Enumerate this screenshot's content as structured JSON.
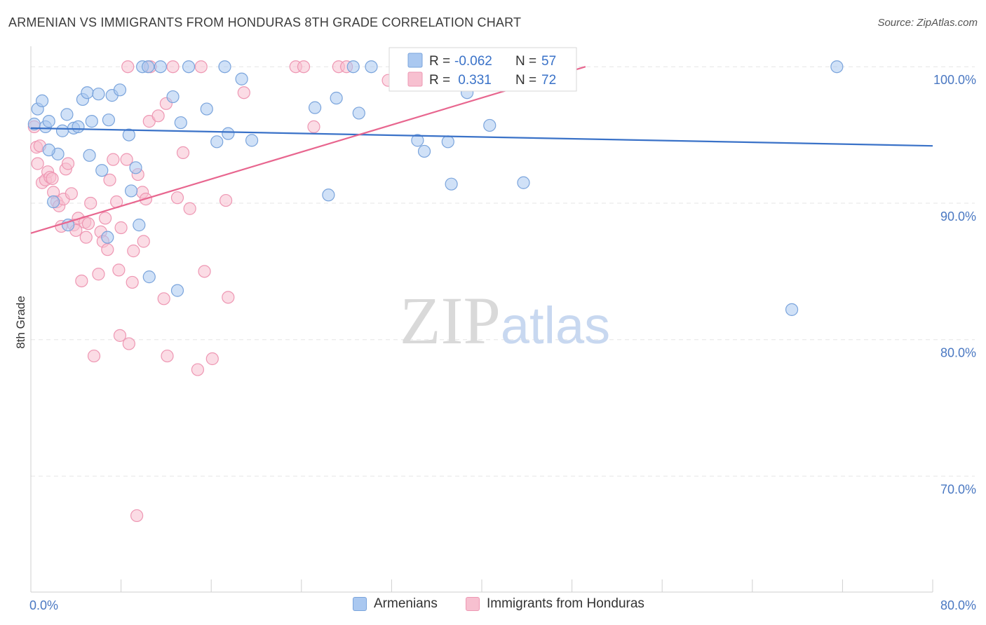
{
  "title": "ARMENIAN VS IMMIGRANTS FROM HONDURAS 8TH GRADE CORRELATION CHART",
  "source": "Source: ZipAtlas.com",
  "watermark": {
    "zip": "ZIP",
    "atlas": "atlas"
  },
  "legend_top": {
    "rows": [
      {
        "r_label": "R =",
        "r_value": "-0.062",
        "n_label": "N =",
        "n_value": "57"
      },
      {
        "r_label": "R =",
        "r_value": " 0.331",
        "n_label": "N =",
        "n_value": "72"
      }
    ]
  },
  "legend_bottom": {
    "series_a": "Armenians",
    "series_b": "Immigrants from Honduras"
  },
  "colors": {
    "blue_fill": "#aac8f0",
    "blue_stroke": "#7aa4dc",
    "blue_line": "#3a72c8",
    "pink_fill": "#f7c0d0",
    "pink_stroke": "#ee97b3",
    "pink_line": "#e8668f",
    "tick_label": "#4a78c2",
    "grid": "#e6e6e6"
  },
  "chart_data": {
    "type": "scatter",
    "title": "ARMENIAN VS IMMIGRANTS FROM HONDURAS 8TH GRADE CORRELATION CHART",
    "xlabel": "",
    "ylabel": "8th Grade",
    "xlim": [
      0,
      80
    ],
    "ylim": [
      61.5,
      101.5
    ],
    "x_tick_labels": [
      "0.0%",
      "80.0%"
    ],
    "y_ticks": [
      100,
      90,
      80,
      70
    ],
    "y_tick_labels": [
      "100.0%",
      "90.0%",
      "80.0%",
      "70.0%"
    ],
    "grid": true,
    "legend_position": "bottom",
    "series": [
      {
        "name": "Armenians",
        "color": "#aac8f0",
        "r": -0.062,
        "n": 57,
        "trend": {
          "x": [
            0,
            80
          ],
          "y": [
            95.5,
            94.2
          ]
        },
        "points": [
          {
            "x": 0.3,
            "y": 95.8
          },
          {
            "x": 0.6,
            "y": 96.9
          },
          {
            "x": 1.0,
            "y": 97.5
          },
          {
            "x": 1.3,
            "y": 95.6
          },
          {
            "x": 1.6,
            "y": 96.0
          },
          {
            "x": 2.0,
            "y": 90.1
          },
          {
            "x": 2.4,
            "y": 93.6
          },
          {
            "x": 2.8,
            "y": 95.3
          },
          {
            "x": 3.2,
            "y": 96.5
          },
          {
            "x": 3.8,
            "y": 95.5
          },
          {
            "x": 4.2,
            "y": 95.6
          },
          {
            "x": 4.6,
            "y": 97.6
          },
          {
            "x": 5.0,
            "y": 98.1
          },
          {
            "x": 5.4,
            "y": 96.0
          },
          {
            "x": 5.2,
            "y": 93.5
          },
          {
            "x": 6.0,
            "y": 98.0
          },
          {
            "x": 6.3,
            "y": 92.4
          },
          {
            "x": 6.8,
            "y": 87.5
          },
          {
            "x": 6.9,
            "y": 96.1
          },
          {
            "x": 7.2,
            "y": 97.9
          },
          {
            "x": 7.9,
            "y": 98.3
          },
          {
            "x": 8.7,
            "y": 95.0
          },
          {
            "x": 8.9,
            "y": 90.9
          },
          {
            "x": 9.3,
            "y": 92.6
          },
          {
            "x": 9.6,
            "y": 88.4
          },
          {
            "x": 10.5,
            "y": 84.6
          },
          {
            "x": 9.9,
            "y": 100.0
          },
          {
            "x": 10.4,
            "y": 100.0
          },
          {
            "x": 11.5,
            "y": 100.0
          },
          {
            "x": 12.6,
            "y": 97.8
          },
          {
            "x": 13.0,
            "y": 83.6
          },
          {
            "x": 13.3,
            "y": 95.9
          },
          {
            "x": 14.0,
            "y": 100.0
          },
          {
            "x": 15.6,
            "y": 96.9
          },
          {
            "x": 16.5,
            "y": 94.5
          },
          {
            "x": 17.2,
            "y": 100.0
          },
          {
            "x": 17.5,
            "y": 95.1
          },
          {
            "x": 18.7,
            "y": 99.1
          },
          {
            "x": 19.6,
            "y": 94.6
          },
          {
            "x": 25.2,
            "y": 97.0
          },
          {
            "x": 26.4,
            "y": 90.6
          },
          {
            "x": 27.1,
            "y": 97.7
          },
          {
            "x": 28.6,
            "y": 100.0
          },
          {
            "x": 29.1,
            "y": 96.6
          },
          {
            "x": 30.2,
            "y": 100.0
          },
          {
            "x": 32.7,
            "y": 100.0
          },
          {
            "x": 34.3,
            "y": 94.6
          },
          {
            "x": 34.9,
            "y": 93.8
          },
          {
            "x": 37.0,
            "y": 94.5
          },
          {
            "x": 37.3,
            "y": 91.4
          },
          {
            "x": 38.7,
            "y": 98.1
          },
          {
            "x": 40.7,
            "y": 95.7
          },
          {
            "x": 43.7,
            "y": 91.5
          },
          {
            "x": 71.5,
            "y": 100.0
          },
          {
            "x": 67.5,
            "y": 82.2
          },
          {
            "x": 3.3,
            "y": 88.4
          },
          {
            "x": 1.6,
            "y": 93.9
          }
        ]
      },
      {
        "name": "Immigrants from Honduras",
        "color": "#f7c0d0",
        "r": 0.331,
        "n": 72,
        "trend": {
          "x": [
            0,
            49.2
          ],
          "y": [
            87.8,
            100.0
          ]
        },
        "points": [
          {
            "x": 0.3,
            "y": 95.6
          },
          {
            "x": 0.5,
            "y": 94.1
          },
          {
            "x": 0.6,
            "y": 92.9
          },
          {
            "x": 0.8,
            "y": 94.2
          },
          {
            "x": 1.0,
            "y": 91.5
          },
          {
            "x": 1.3,
            "y": 91.7
          },
          {
            "x": 1.5,
            "y": 92.3
          },
          {
            "x": 1.7,
            "y": 91.9
          },
          {
            "x": 1.9,
            "y": 91.8
          },
          {
            "x": 2.0,
            "y": 90.8
          },
          {
            "x": 2.3,
            "y": 90.1
          },
          {
            "x": 2.5,
            "y": 89.8
          },
          {
            "x": 2.7,
            "y": 88.3
          },
          {
            "x": 2.9,
            "y": 90.3
          },
          {
            "x": 3.1,
            "y": 92.5
          },
          {
            "x": 3.3,
            "y": 92.9
          },
          {
            "x": 3.6,
            "y": 90.7
          },
          {
            "x": 3.8,
            "y": 88.4
          },
          {
            "x": 4.0,
            "y": 88.0
          },
          {
            "x": 4.2,
            "y": 88.9
          },
          {
            "x": 4.5,
            "y": 84.3
          },
          {
            "x": 4.8,
            "y": 88.6
          },
          {
            "x": 4.9,
            "y": 87.5
          },
          {
            "x": 5.1,
            "y": 88.5
          },
          {
            "x": 5.3,
            "y": 90.0
          },
          {
            "x": 5.6,
            "y": 78.8
          },
          {
            "x": 6.0,
            "y": 84.8
          },
          {
            "x": 6.2,
            "y": 87.9
          },
          {
            "x": 6.4,
            "y": 87.2
          },
          {
            "x": 6.6,
            "y": 88.9
          },
          {
            "x": 6.8,
            "y": 86.6
          },
          {
            "x": 7.0,
            "y": 91.7
          },
          {
            "x": 7.3,
            "y": 93.2
          },
          {
            "x": 7.6,
            "y": 90.1
          },
          {
            "x": 7.8,
            "y": 85.1
          },
          {
            "x": 7.9,
            "y": 80.3
          },
          {
            "x": 8.0,
            "y": 88.2
          },
          {
            "x": 8.5,
            "y": 93.2
          },
          {
            "x": 8.7,
            "y": 79.7
          },
          {
            "x": 9.0,
            "y": 84.2
          },
          {
            "x": 9.1,
            "y": 86.5
          },
          {
            "x": 9.5,
            "y": 92.1
          },
          {
            "x": 9.4,
            "y": 67.1
          },
          {
            "x": 8.6,
            "y": 100.0
          },
          {
            "x": 9.9,
            "y": 90.8
          },
          {
            "x": 10.2,
            "y": 90.3
          },
          {
            "x": 10.5,
            "y": 96.0
          },
          {
            "x": 10.6,
            "y": 100.0
          },
          {
            "x": 11.3,
            "y": 96.4
          },
          {
            "x": 11.8,
            "y": 83.0
          },
          {
            "x": 12.1,
            "y": 78.8
          },
          {
            "x": 12.6,
            "y": 100.0
          },
          {
            "x": 13.0,
            "y": 90.4
          },
          {
            "x": 13.5,
            "y": 93.7
          },
          {
            "x": 14.1,
            "y": 89.6
          },
          {
            "x": 14.8,
            "y": 77.8
          },
          {
            "x": 15.1,
            "y": 100.0
          },
          {
            "x": 15.4,
            "y": 85.0
          },
          {
            "x": 16.1,
            "y": 78.6
          },
          {
            "x": 17.3,
            "y": 90.2
          },
          {
            "x": 17.5,
            "y": 83.1
          },
          {
            "x": 18.9,
            "y": 98.1
          },
          {
            "x": 23.5,
            "y": 100.0
          },
          {
            "x": 24.2,
            "y": 100.0
          },
          {
            "x": 25.1,
            "y": 95.6
          },
          {
            "x": 27.3,
            "y": 100.0
          },
          {
            "x": 28.0,
            "y": 100.0
          },
          {
            "x": 31.7,
            "y": 99.0
          },
          {
            "x": 40.0,
            "y": 100.0
          },
          {
            "x": 42.3,
            "y": 100.0
          },
          {
            "x": 12.0,
            "y": 97.3
          },
          {
            "x": 10.0,
            "y": 87.2
          }
        ]
      }
    ]
  }
}
